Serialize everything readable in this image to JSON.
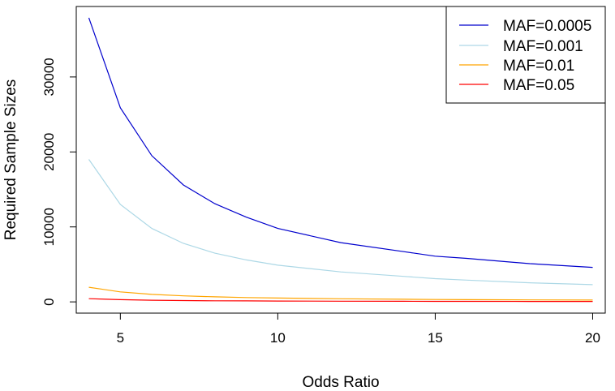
{
  "chart_data": {
    "type": "line",
    "title": "",
    "xlabel": "Odds Ratio",
    "ylabel": "Required Sample Sizes",
    "xlim": [
      3.6,
      20.4
    ],
    "ylim": [
      -1500,
      39400
    ],
    "xticks": [
      5,
      10,
      15,
      20
    ],
    "yticks": [
      0,
      10000,
      20000,
      30000
    ],
    "xtick_labels": [
      "5",
      "10",
      "15",
      "20"
    ],
    "ytick_labels": [
      "0",
      "10000",
      "20000",
      "30000"
    ],
    "grid": false,
    "legend_position": "top-right",
    "x": [
      4,
      5,
      6,
      7,
      8,
      9,
      10,
      12,
      14,
      15,
      16,
      18,
      20
    ],
    "series": [
      {
        "name": "MAF=0.0005",
        "color": "#0000cd",
        "values": [
          37900,
          25900,
          19500,
          15600,
          13100,
          11300,
          9800,
          7900,
          6700,
          6100,
          5800,
          5100,
          4600
        ]
      },
      {
        "name": "MAF=0.001",
        "color": "#add8e6",
        "values": [
          19000,
          13000,
          9800,
          7800,
          6500,
          5600,
          4900,
          4000,
          3400,
          3100,
          2900,
          2550,
          2300
        ]
      },
      {
        "name": "MAF=0.01",
        "color": "#ffa500",
        "values": [
          1950,
          1330,
          1000,
          800,
          670,
          580,
          510,
          410,
          350,
          320,
          300,
          265,
          240
        ]
      },
      {
        "name": "MAF=0.05",
        "color": "#ff0000",
        "values": [
          430,
          295,
          225,
          180,
          150,
          130,
          115,
          93,
          80,
          73,
          68,
          60,
          55
        ]
      }
    ]
  }
}
